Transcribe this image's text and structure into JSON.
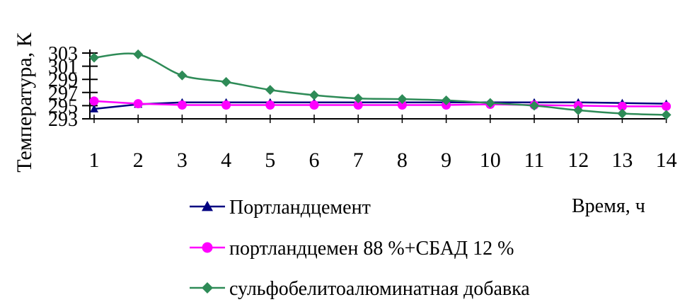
{
  "chart_data": {
    "type": "line",
    "xlabel": "Время, ч",
    "ylabel": "Температура, К",
    "x": [
      1,
      2,
      3,
      4,
      5,
      6,
      7,
      8,
      9,
      10,
      11,
      12,
      13,
      14
    ],
    "yticks": [
      293,
      295,
      297,
      299,
      301,
      303
    ],
    "ylim": [
      293,
      303
    ],
    "legend_position": "bottom",
    "grid": false,
    "series": [
      {
        "name": "Портландцемент",
        "color": "#000080",
        "marker": "triangle",
        "values": [
          294.5,
          295.2,
          295.5,
          295.5,
          295.5,
          295.5,
          295.5,
          295.5,
          295.5,
          295.5,
          295.5,
          295.5,
          295.4,
          295.3
        ]
      },
      {
        "name": "портландцемен 88 %+СБАД 12 %",
        "color": "#ff00ff",
        "marker": "circle",
        "values": [
          295.7,
          295.3,
          295.1,
          295.1,
          295.1,
          295.1,
          295.1,
          295.1,
          295.1,
          295.2,
          295.1,
          295.0,
          294.9,
          294.9
        ]
      },
      {
        "name": "сульфобелитоалюминатная добавка",
        "color": "#2e8b57",
        "marker": "diamond",
        "values": [
          302.3,
          302.8,
          299.6,
          298.6,
          297.4,
          296.6,
          296.1,
          296.0,
          295.8,
          295.4,
          295.0,
          294.3,
          293.8,
          293.6
        ]
      }
    ]
  }
}
